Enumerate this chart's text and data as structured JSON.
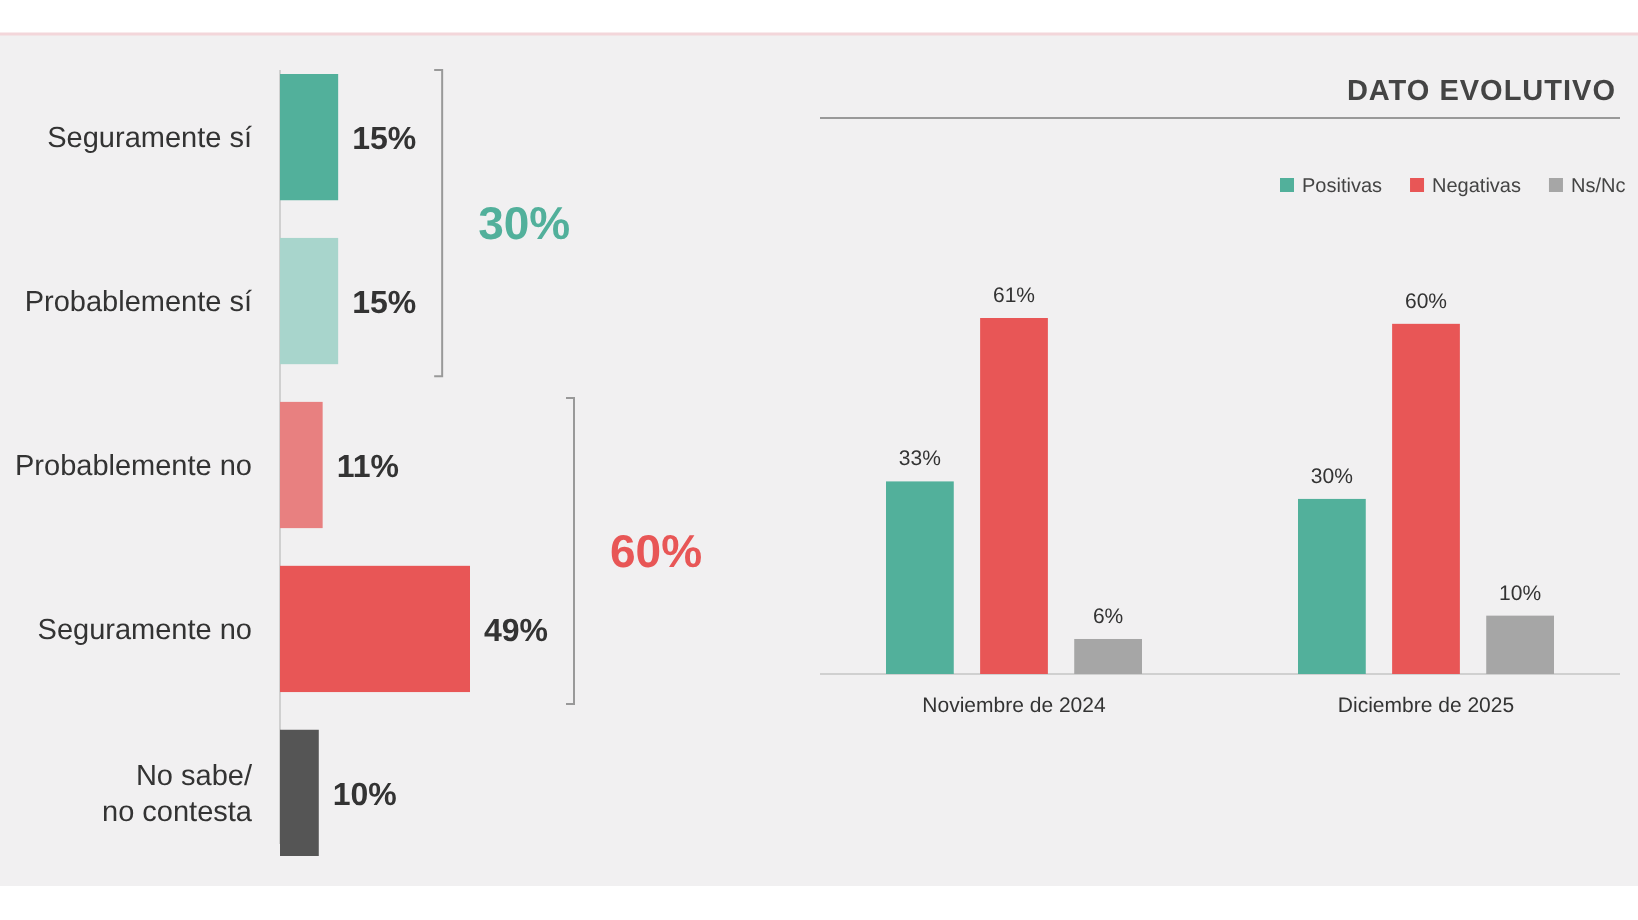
{
  "chart_data": [
    {
      "type": "bar",
      "orientation": "horizontal",
      "categories": [
        "Seguramente sí",
        "Probablemente sí",
        "Probablemente no",
        "Seguramente no",
        "No sabe/no contesta"
      ],
      "values": [
        15,
        15,
        11,
        49,
        10
      ],
      "colors": [
        "#52b09b",
        "#a8d5cc",
        "#e88080",
        "#e85656",
        "#555555"
      ],
      "data_labels": true,
      "value_labels": [
        "15%",
        "15%",
        "11%",
        "49%",
        "10%"
      ],
      "annotations": [
        "30%",
        "60%"
      ]
    },
    {
      "type": "bar",
      "title": "DATO EVOLUTIVO",
      "categories": [
        "Noviembre de 2024",
        "Diciembre de 2025"
      ],
      "series": [
        {
          "name": "Positivas",
          "color": "#52b09b",
          "values": [
            33,
            30
          ],
          "value_labels": [
            "33%",
            "30%"
          ]
        },
        {
          "name": "Negativas",
          "color": "#e85656",
          "values": [
            61,
            60
          ],
          "value_labels": [
            "61%",
            "60%"
          ]
        },
        {
          "name": "Ns/Nc",
          "color": "#a6a6a6",
          "values": [
            6,
            10
          ],
          "value_labels": [
            "6%",
            "10%"
          ]
        }
      ],
      "data_labels": true,
      "legend": "top right"
    }
  ]
}
